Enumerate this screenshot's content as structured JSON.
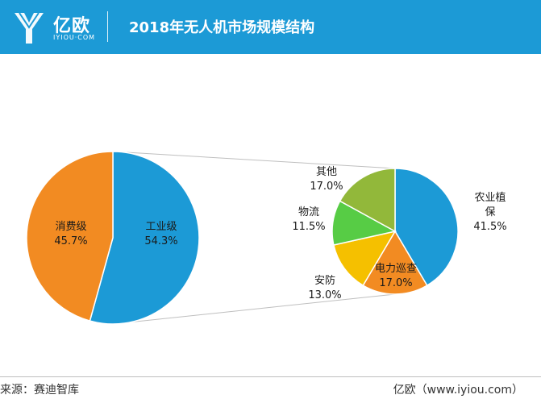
{
  "header": {
    "logo_text": "亿欧",
    "logo_sub": "IYIOU·COM",
    "title": "2018年无人机市场规模结构"
  },
  "footer": {
    "source": "来源：赛迪智库",
    "site": "亿欧（www.iyiou.com）"
  },
  "chart_data": [
    {
      "type": "pie",
      "title": "",
      "slices": [
        {
          "label": "工业级",
          "value": 54.3,
          "display": "54.3%",
          "color": "#1c9ad6"
        },
        {
          "label": "消费级",
          "value": 45.7,
          "display": "45.7%",
          "color": "#f28b22"
        }
      ]
    },
    {
      "type": "pie",
      "title": "",
      "slices": [
        {
          "label": "农业植保",
          "value": 41.5,
          "display": "41.5%",
          "color": "#1c9ad6"
        },
        {
          "label": "电力巡查",
          "value": 17.0,
          "display": "17.0%",
          "color": "#f28b22"
        },
        {
          "label": "安防",
          "value": 13.0,
          "display": "13.0%",
          "color": "#f5c000"
        },
        {
          "label": "物流",
          "value": 11.5,
          "display": "11.5%",
          "color": "#57cc45"
        },
        {
          "label": "其他",
          "value": 17.0,
          "display": "17.0%",
          "color": "#92b83a"
        }
      ]
    }
  ]
}
